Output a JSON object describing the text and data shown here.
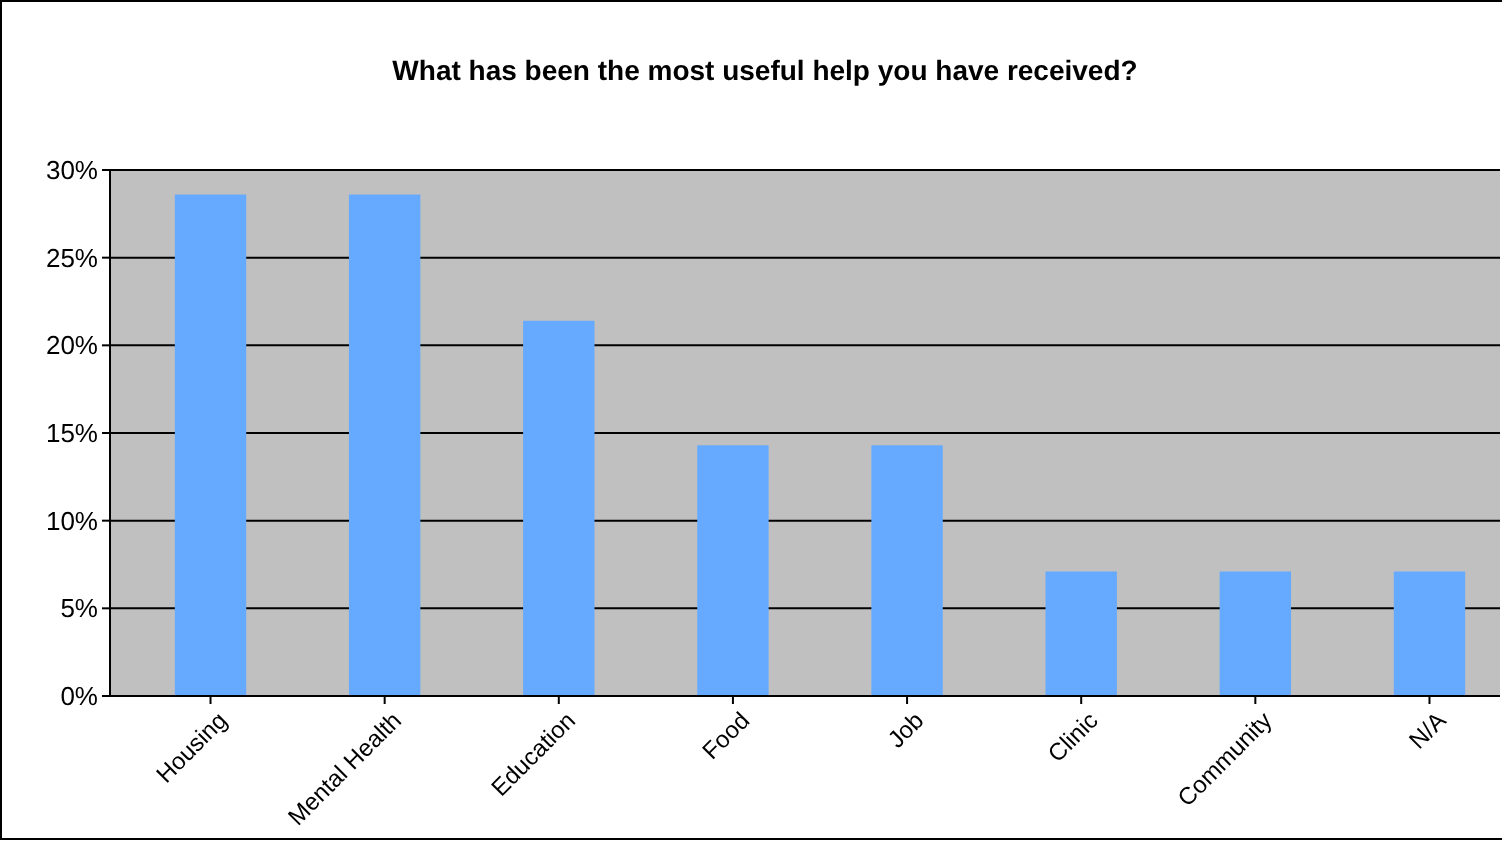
{
  "chart_data": {
    "type": "bar",
    "title": "What has been the most useful help you have received?",
    "categories": [
      "Housing",
      "Mental Health",
      "Education",
      "Food",
      "Job",
      "Clinic",
      "Community",
      "N/A"
    ],
    "values": [
      28.6,
      28.6,
      21.4,
      14.3,
      14.3,
      7.1,
      7.1,
      7.1
    ],
    "color": "#66aaff",
    "ylim": [
      0,
      30
    ],
    "yticks": [
      {
        "value": 0,
        "label": "0%"
      },
      {
        "value": 5,
        "label": "5%"
      },
      {
        "value": 10,
        "label": "10%"
      },
      {
        "value": 15,
        "label": "15%"
      },
      {
        "value": 20,
        "label": "20%"
      },
      {
        "value": 25,
        "label": "25%"
      },
      {
        "value": 30,
        "label": "30%"
      }
    ],
    "grid": "y"
  }
}
